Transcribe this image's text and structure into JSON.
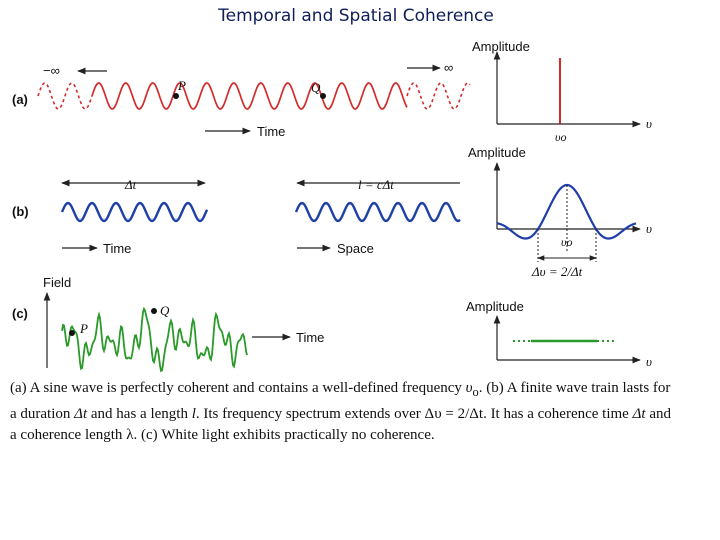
{
  "slide": {
    "title": "Temporal and Spatial Coherence"
  },
  "panel_a": {
    "label": "(a)",
    "minus_infinity": "−∞",
    "plus_infinity": "∞",
    "point_p": "P",
    "point_q": "Q",
    "axis": "Time",
    "spectrum": {
      "ylabel": "Amplitude",
      "xlabel": "υ",
      "peak_label": "υo"
    }
  },
  "panel_b": {
    "label": "(b)",
    "duration": "Δt",
    "length": "l = cΔt",
    "axis_time": "Time",
    "axis_space": "Space",
    "spectrum": {
      "ylabel": "Amplitude",
      "xlabel": "υ",
      "peak_label": "υo",
      "width_label": "Δυ = 2/Δt"
    }
  },
  "panel_c": {
    "label": "(c)",
    "ylabel": "Field",
    "point_p": "P",
    "point_q": "Q",
    "axis": "Time",
    "spectrum": {
      "ylabel": "Amplitude",
      "xlabel": "υ"
    }
  },
  "caption": {
    "s1": "(a) A sine wave is perfectly coherent and contains a well-defined frequency ",
    "s1_sym": "υ",
    "s1_sub": "o",
    "s2": ". (b) A finite wave train lasts for a duration ",
    "s2_sym": "Δt",
    "s3": " and has a length ",
    "s3_sym": "l",
    "s4": ". Its frequency spectrum extends over ",
    "s4_sym": "Δυ = 2/Δt",
    "s5": ". It has a coherence time ",
    "s5_sym": "Δt",
    "s6": " and a coherence length ",
    "s6_sym": "λ",
    "s7": ".  (c) White light exhibits practically no coherence."
  },
  "colors": {
    "wave_a": "#d42a2a",
    "wave_b": "#1f3fa8",
    "wave_c": "#2a9a2a",
    "title": "#0f1e5a"
  }
}
